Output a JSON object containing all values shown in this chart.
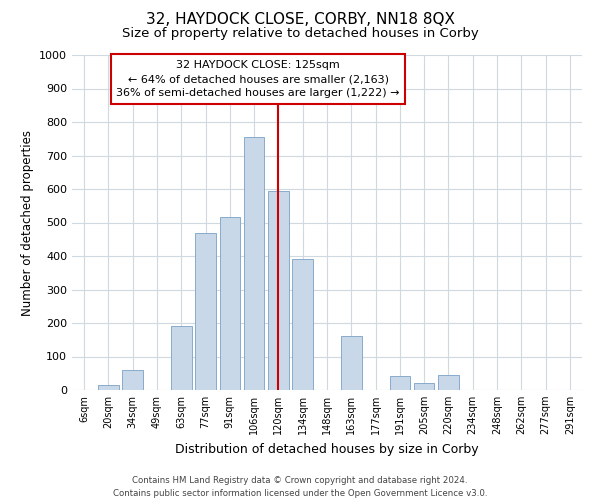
{
  "title": "32, HAYDOCK CLOSE, CORBY, NN18 8QX",
  "subtitle": "Size of property relative to detached houses in Corby",
  "xlabel": "Distribution of detached houses by size in Corby",
  "ylabel": "Number of detached properties",
  "bar_labels": [
    "6sqm",
    "20sqm",
    "34sqm",
    "49sqm",
    "63sqm",
    "77sqm",
    "91sqm",
    "106sqm",
    "120sqm",
    "134sqm",
    "148sqm",
    "163sqm",
    "177sqm",
    "191sqm",
    "205sqm",
    "220sqm",
    "234sqm",
    "248sqm",
    "262sqm",
    "277sqm",
    "291sqm"
  ],
  "bar_values": [
    0,
    14,
    60,
    0,
    190,
    470,
    515,
    755,
    595,
    390,
    0,
    160,
    0,
    42,
    20,
    45,
    0,
    0,
    0,
    0,
    0
  ],
  "bar_color": "#c8d8e8",
  "bar_edge_color": "#88aacc",
  "highlight_index": 8,
  "highlight_line_color": "#cc0000",
  "ylim": [
    0,
    1000
  ],
  "yticks": [
    0,
    100,
    200,
    300,
    400,
    500,
    600,
    700,
    800,
    900,
    1000
  ],
  "annotation_title": "32 HAYDOCK CLOSE: 125sqm",
  "annotation_line1": "← 64% of detached houses are smaller (2,163)",
  "annotation_line2": "36% of semi-detached houses are larger (1,222) →",
  "annotation_box_color": "#ffffff",
  "annotation_box_edge_color": "#cc0000",
  "footer_line1": "Contains HM Land Registry data © Crown copyright and database right 2024.",
  "footer_line2": "Contains public sector information licensed under the Open Government Licence v3.0.",
  "background_color": "#ffffff",
  "grid_color": "#d0d8e0",
  "title_fontsize": 11,
  "subtitle_fontsize": 9.5
}
